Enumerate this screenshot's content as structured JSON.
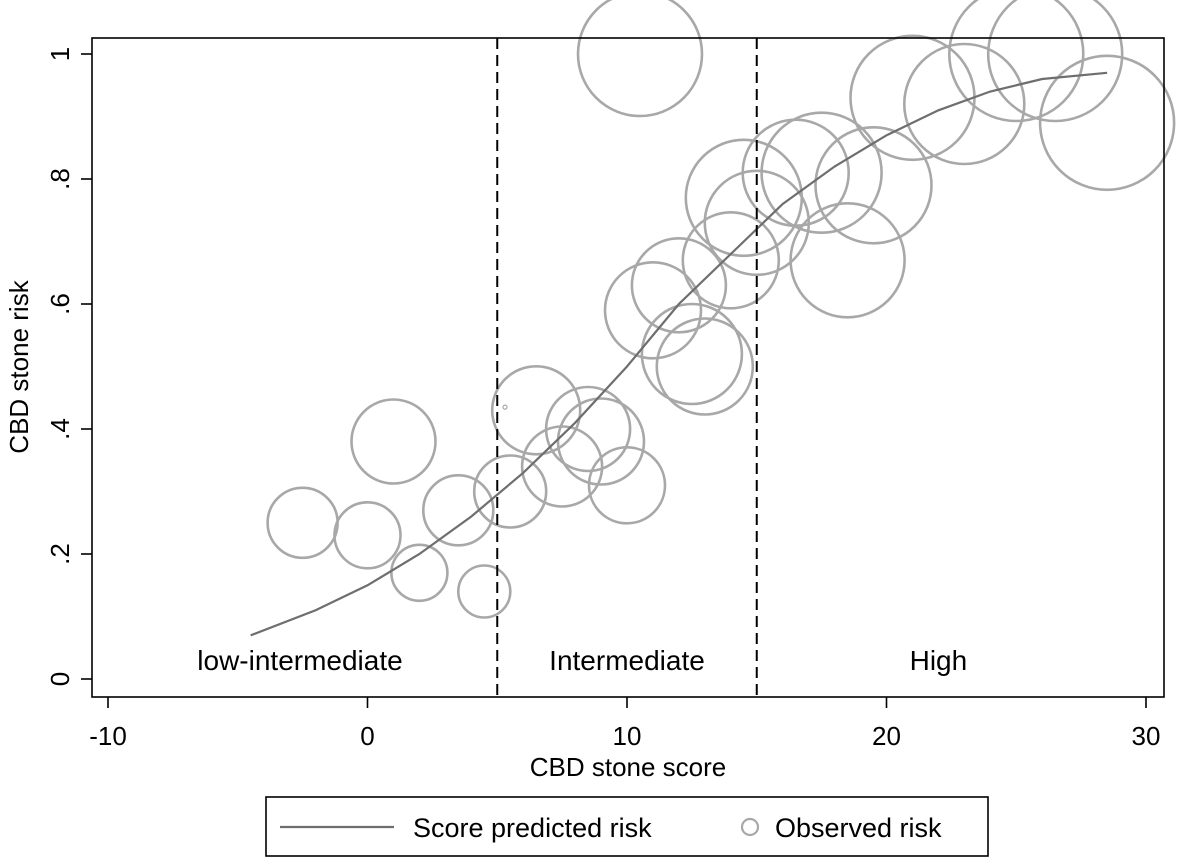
{
  "chart_data": {
    "type": "scatter",
    "title": "",
    "xlabel": "CBD stone score",
    "ylabel": "CBD stone risk",
    "xlim": [
      -10,
      30
    ],
    "ylim": [
      0,
      1
    ],
    "x_ticks": [
      -10,
      0,
      10,
      20,
      30
    ],
    "x_tick_labels": [
      "-10",
      "0",
      "10",
      "20",
      "30"
    ],
    "y_ticks": [
      0,
      0.2,
      0.4,
      0.6,
      0.8,
      1
    ],
    "y_tick_labels": [
      "0",
      ".2",
      ".4",
      ".6",
      ".8",
      "1"
    ],
    "grid": false,
    "cutoffs": [
      5,
      15
    ],
    "regions": [
      {
        "label": "low-intermediate",
        "x": -2.6
      },
      {
        "label": "Intermediate",
        "x": 10
      },
      {
        "label": "High",
        "x": 22
      }
    ],
    "legend": {
      "position": "bottom",
      "entries": [
        {
          "label": "Score predicted risk",
          "symbol": "line"
        },
        {
          "label": "Observed risk",
          "symbol": "circle"
        }
      ]
    },
    "colors": {
      "line": "#6e6e6e",
      "marker": "#a8a8a8"
    },
    "series": [
      {
        "name": "Score predicted risk",
        "type": "line",
        "x": [
          -4.5,
          -2,
          0,
          2,
          4,
          6,
          8,
          10,
          12,
          14,
          16,
          18,
          20,
          22,
          24,
          26,
          28.5
        ],
        "y": [
          0.07,
          0.11,
          0.15,
          0.2,
          0.26,
          0.33,
          0.41,
          0.5,
          0.6,
          0.68,
          0.76,
          0.82,
          0.87,
          0.91,
          0.94,
          0.96,
          0.97
        ]
      },
      {
        "name": "Observed risk",
        "type": "scatter",
        "x": [
          -2.5,
          0,
          1,
          2,
          3.5,
          4.5,
          5.3,
          5.5,
          6.5,
          7.5,
          8.5,
          9,
          10,
          10.5,
          11,
          12,
          12.5,
          13,
          14,
          14.5,
          15,
          16.5,
          17.5,
          18.5,
          19.5,
          21,
          23,
          25,
          26.5,
          28.5
        ],
        "y": [
          0.25,
          0.23,
          0.38,
          0.17,
          0.27,
          0.14,
          0.435,
          0.3,
          0.43,
          0.34,
          0.4,
          0.38,
          0.31,
          1.0,
          0.59,
          0.63,
          0.52,
          0.5,
          0.67,
          0.77,
          0.73,
          0.81,
          0.81,
          0.67,
          0.79,
          0.93,
          0.92,
          1.0,
          1.0,
          0.89
        ],
        "size": [
          35,
          33,
          42,
          28,
          35,
          26,
          2,
          36,
          44,
          40,
          42,
          43,
          38,
          62,
          48,
          47,
          50,
          48,
          48,
          58,
          52,
          53,
          60,
          57,
          58,
          62,
          60,
          67,
          67,
          67
        ]
      }
    ]
  }
}
